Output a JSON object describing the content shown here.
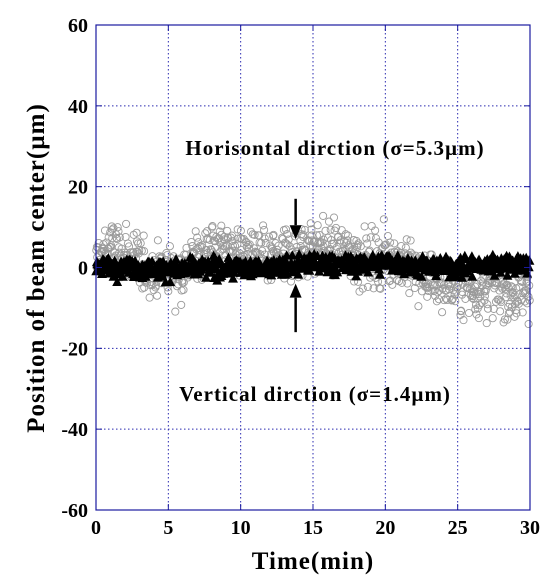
{
  "chart_data": {
    "type": "scatter",
    "title": "",
    "xlabel": "Time(min)",
    "ylabel": "Position of beam center(µm)",
    "xlim": [
      0,
      30
    ],
    "ylim": [
      -60,
      60
    ],
    "x_ticks": [
      "0",
      "5",
      "10",
      "15",
      "20",
      "25",
      "30"
    ],
    "y_ticks": [
      "60",
      "40",
      "20",
      "0",
      "-20",
      "-40",
      "-60"
    ],
    "grid": true,
    "series": [
      {
        "name": "Horisontal dirction (σ=5.3µm)",
        "marker": "open-circle",
        "color": "#9a9a9a",
        "sigma": 5.3,
        "trend": [
          [
            0,
            2
          ],
          [
            1,
            5
          ],
          [
            2,
            3
          ],
          [
            3,
            1
          ],
          [
            4,
            -1
          ],
          [
            5,
            0
          ],
          [
            6,
            -1
          ],
          [
            7,
            3
          ],
          [
            8,
            5
          ],
          [
            9,
            5
          ],
          [
            10,
            4
          ],
          [
            11,
            3
          ],
          [
            12,
            2
          ],
          [
            13,
            3
          ],
          [
            14,
            4
          ],
          [
            15,
            6
          ],
          [
            16,
            5
          ],
          [
            17,
            4
          ],
          [
            18,
            3
          ],
          [
            19,
            2
          ],
          [
            20,
            3
          ],
          [
            21,
            2
          ],
          [
            22,
            -1
          ],
          [
            23,
            -3
          ],
          [
            24,
            -4
          ],
          [
            25,
            -5
          ],
          [
            26,
            -6
          ],
          [
            27,
            -5
          ],
          [
            28,
            -6
          ],
          [
            29,
            -7
          ],
          [
            30,
            -5
          ]
        ]
      },
      {
        "name": "Vertical dirction (σ=1.4µm)",
        "marker": "filled-triangle",
        "color": "#000000",
        "sigma": 1.4,
        "trend": [
          [
            0,
            0.5
          ],
          [
            5,
            -0.5
          ],
          [
            10,
            0
          ],
          [
            13,
            0
          ],
          [
            15,
            1
          ],
          [
            18,
            0.5
          ],
          [
            20,
            1.5
          ],
          [
            22,
            0.5
          ],
          [
            25,
            0
          ],
          [
            28,
            1
          ],
          [
            30,
            1
          ]
        ]
      }
    ],
    "annotations": [
      {
        "text": "Horisontal dirction (σ=5.3µm)",
        "arrow_x": 13.8,
        "arrow_from_y": 17,
        "arrow_to_y": 7
      },
      {
        "text": "Vertical dirction (σ=1.4µm)",
        "arrow_x": 13.8,
        "arrow_from_y": -16,
        "arrow_to_y": -4
      }
    ]
  }
}
